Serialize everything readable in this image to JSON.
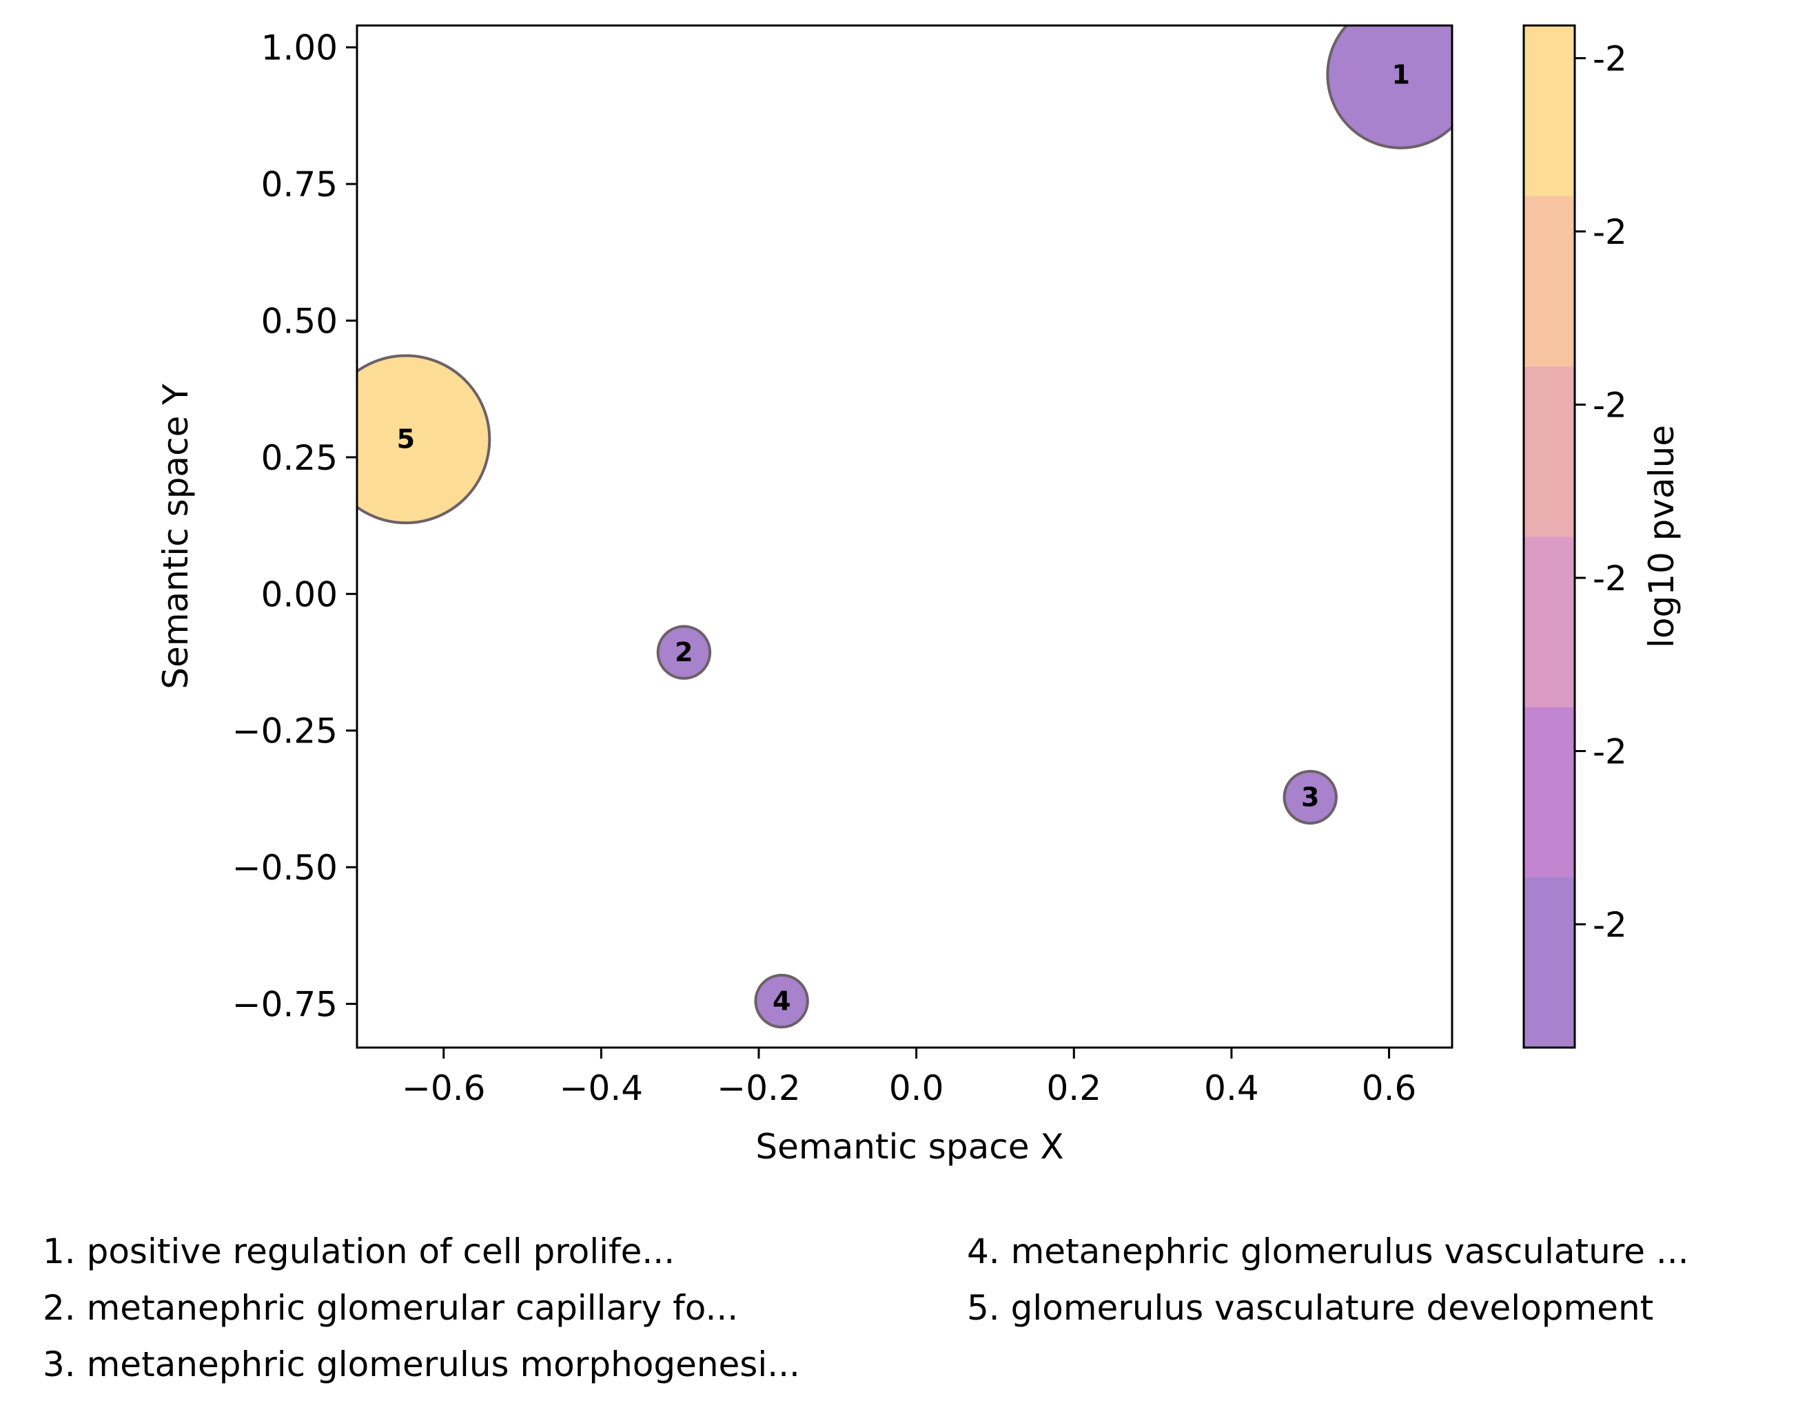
{
  "chart_data": {
    "type": "scatter",
    "title": "",
    "xlabel": "Semantic space X",
    "ylabel": "Semantic space Y",
    "xlim": [
      -0.71,
      0.68
    ],
    "ylim": [
      -0.83,
      1.04
    ],
    "xticks": [
      -0.6,
      -0.4,
      -0.2,
      0.0,
      0.2,
      0.4,
      0.6
    ],
    "xtick_labels": [
      "−0.6",
      "−0.4",
      "−0.2",
      "0.0",
      "0.2",
      "0.4",
      "0.6"
    ],
    "yticks": [
      1.0,
      0.75,
      0.5,
      0.25,
      0.0,
      -0.25,
      -0.5,
      -0.75
    ],
    "ytick_labels": [
      "1.00",
      "0.75",
      "0.50",
      "0.25",
      "0.00",
      "−0.25",
      "−0.50",
      "−0.75"
    ],
    "grid": false,
    "points": [
      {
        "label": "1",
        "x": 0.615,
        "y": 0.95,
        "radius_data": 0.134,
        "color": "#a882cc"
      },
      {
        "label": "2",
        "x": -0.295,
        "y": -0.107,
        "radius_data": 0.0475,
        "color": "#a882cc"
      },
      {
        "label": "3",
        "x": 0.5,
        "y": -0.372,
        "radius_data": 0.0475,
        "color": "#a882cc"
      },
      {
        "label": "4",
        "x": -0.171,
        "y": -0.745,
        "radius_data": 0.0475,
        "color": "#a882cc"
      },
      {
        "label": "5",
        "x": -0.648,
        "y": 0.283,
        "radius_data": 0.153,
        "color": "#fddc96"
      }
    ],
    "colorbar": {
      "label": "log10 pvalue",
      "tick_labels": [
        "-2",
        "-2",
        "-2",
        "-2",
        "-2",
        "-2"
      ],
      "colors_bottom_to_top": [
        "#a882cc",
        "#c285cf",
        "#da9cc4",
        "#ebaeb1",
        "#f7c4a1",
        "#fddc96"
      ]
    },
    "legend": [
      "1. positive regulation of cell prolife...",
      "2. metanephric glomerular capillary fo...",
      "3. metanephric glomerulus morphogenesi...",
      "4. metanephric glomerulus vasculature ...",
      "5. glomerulus vasculature development"
    ]
  }
}
